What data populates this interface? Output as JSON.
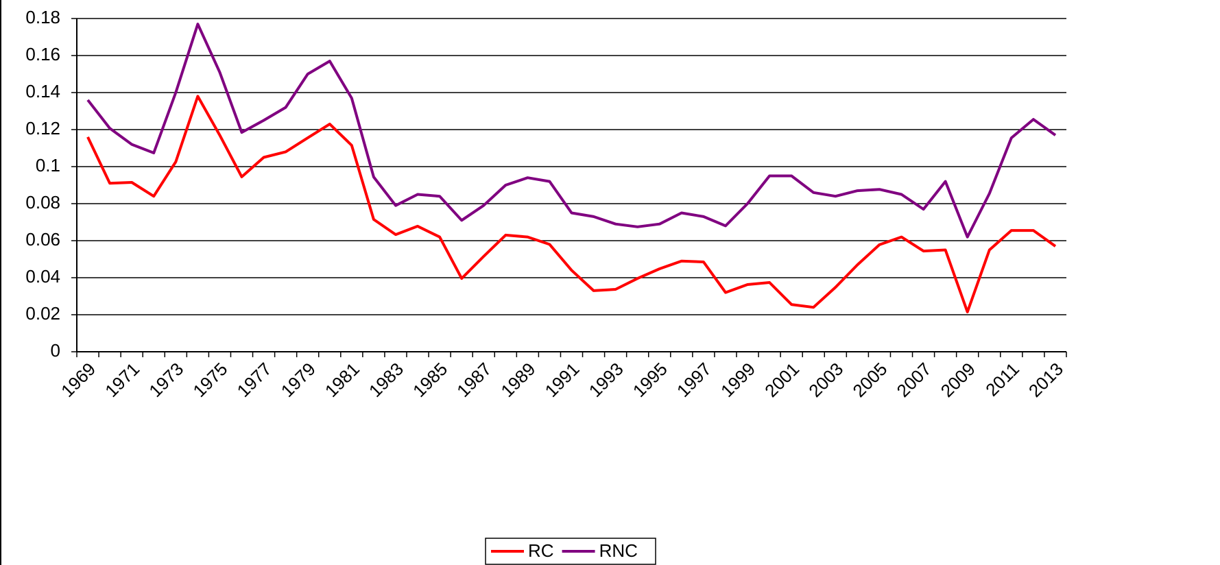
{
  "chart_data": {
    "type": "line",
    "categories": [
      "1969",
      null,
      "1971",
      null,
      "1973",
      null,
      "1975",
      null,
      "1977",
      null,
      "1979",
      null,
      "1981",
      null,
      "1983",
      null,
      "1985",
      null,
      "1987",
      null,
      "1989",
      null,
      "1991",
      null,
      "1993",
      null,
      "1995",
      null,
      "1997",
      null,
      "1999",
      null,
      "2001",
      null,
      "2003",
      null,
      "2005",
      null,
      "2007",
      null,
      "2009",
      null,
      "2011",
      null,
      "2013"
    ],
    "series": [
      {
        "name": "RC",
        "color": "#ff0000",
        "values": [
          0.116,
          0.091,
          0.0915,
          0.084,
          0.1026,
          0.138,
          0.117,
          0.0945,
          0.105,
          0.108,
          0.1155,
          0.123,
          0.1115,
          0.0715,
          0.0633,
          0.0678,
          0.062,
          0.0396,
          0.0515,
          0.063,
          0.062,
          0.058,
          0.044,
          0.033,
          0.0337,
          0.0396,
          0.0448,
          0.049,
          0.0485,
          0.032,
          0.0363,
          0.0374,
          0.0255,
          0.024,
          0.0348,
          0.047,
          0.0578,
          0.062,
          0.0544,
          0.055,
          0.0215,
          0.055,
          0.0655,
          0.0655,
          0.057
        ]
      },
      {
        "name": "RNC",
        "color": "#800080",
        "values": [
          0.136,
          0.1207,
          0.112,
          0.1074,
          0.14,
          0.177,
          0.151,
          0.1185,
          0.125,
          0.132,
          0.15,
          0.157,
          0.137,
          0.0944,
          0.079,
          0.085,
          0.084,
          0.071,
          0.079,
          0.09,
          0.094,
          0.092,
          0.075,
          0.073,
          0.069,
          0.0675,
          0.069,
          0.075,
          0.073,
          0.068,
          0.08,
          0.095,
          0.095,
          0.086,
          0.084,
          0.087,
          0.0877,
          0.085,
          0.077,
          0.092,
          0.062,
          0.0855,
          0.1155,
          0.1255,
          0.117
        ]
      }
    ],
    "ylim": [
      0,
      0.18
    ],
    "yticks": [
      0,
      0.02,
      0.04,
      0.06,
      0.08,
      0.1,
      0.12,
      0.14,
      0.16,
      0.18
    ],
    "grid": true,
    "legend": "bottom"
  }
}
